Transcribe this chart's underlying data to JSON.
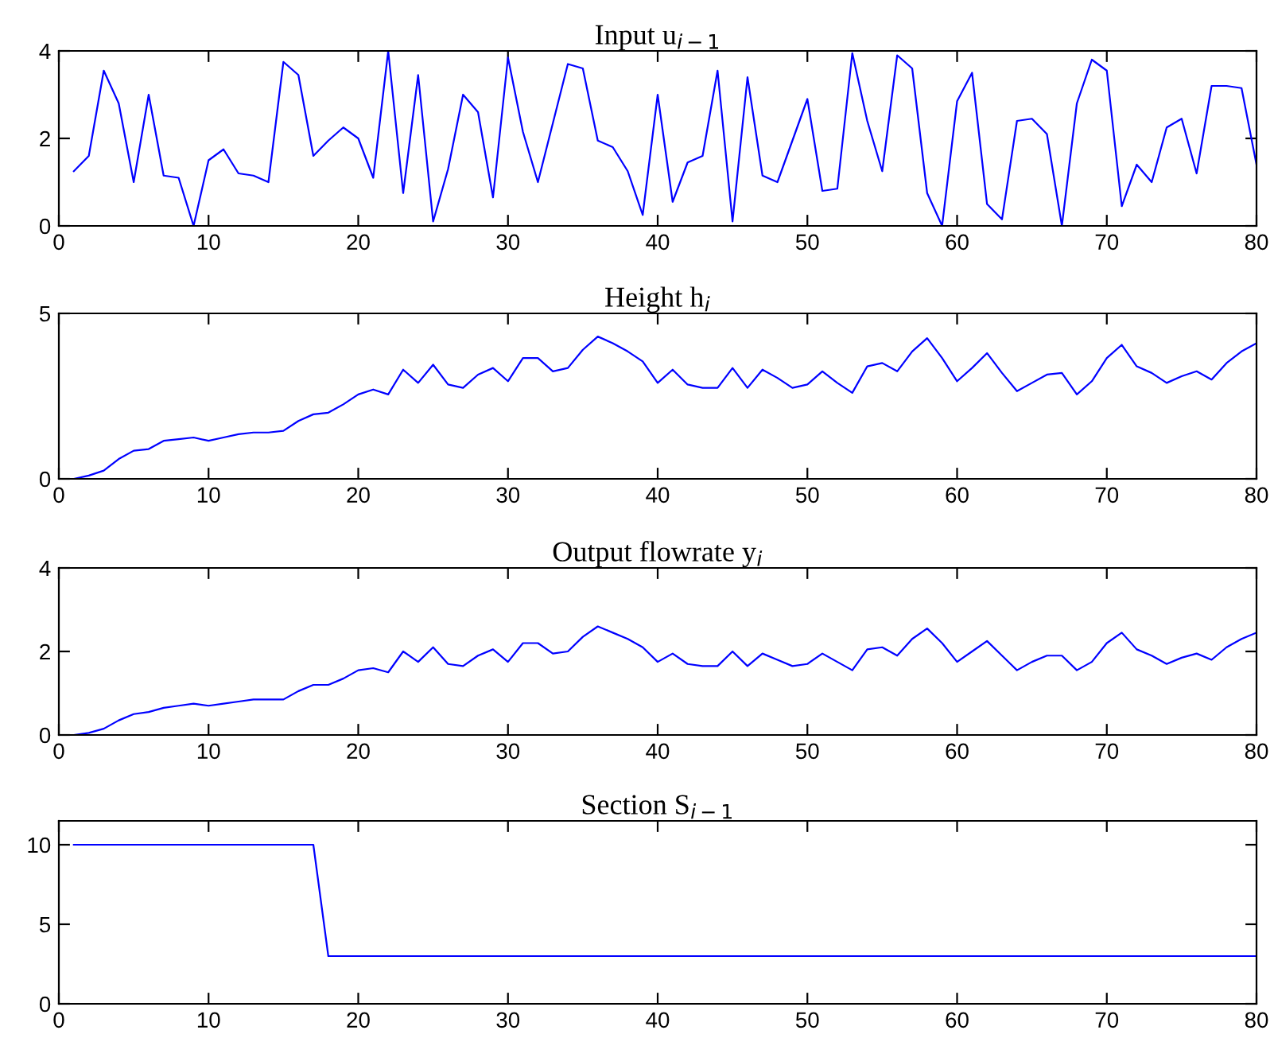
{
  "chart_data": [
    {
      "type": "line",
      "title": "Input u$_{i−1}$",
      "x": [
        1,
        2,
        3,
        4,
        5,
        6,
        7,
        8,
        9,
        10,
        11,
        12,
        13,
        14,
        15,
        16,
        17,
        18,
        19,
        20,
        21,
        22,
        23,
        24,
        25,
        26,
        27,
        28,
        29,
        30,
        31,
        32,
        33,
        34,
        35,
        36,
        37,
        38,
        39,
        40,
        41,
        42,
        43,
        44,
        45,
        46,
        47,
        48,
        49,
        50,
        51,
        52,
        53,
        54,
        55,
        56,
        57,
        58,
        59,
        60,
        61,
        62,
        63,
        64,
        65,
        66,
        67,
        68,
        69,
        70,
        71,
        72,
        73,
        74,
        75,
        76,
        77,
        78,
        79,
        80
      ],
      "xlim": [
        0,
        80
      ],
      "xticks": [
        0,
        10,
        20,
        30,
        40,
        50,
        60,
        70,
        80
      ],
      "ylim": [
        0,
        4
      ],
      "yticks": [
        0,
        2,
        4
      ],
      "grid": false,
      "marker": "none",
      "line_style": "solid",
      "series": [
        {
          "color": "#0000ff",
          "values": [
            1.25,
            1.6,
            3.55,
            2.8,
            1.0,
            3.0,
            1.15,
            1.1,
            0.0,
            1.5,
            1.75,
            1.2,
            1.15,
            1.0,
            3.75,
            3.45,
            1.6,
            1.95,
            2.25,
            2.0,
            1.1,
            4.0,
            0.75,
            3.45,
            0.1,
            1.3,
            3.0,
            2.6,
            0.65,
            3.85,
            2.15,
            1.0,
            2.35,
            3.7,
            3.6,
            1.95,
            1.8,
            1.25,
            0.25,
            3.0,
            0.55,
            1.45,
            1.6,
            3.55,
            0.1,
            3.4,
            1.15,
            1.0,
            1.95,
            2.9,
            0.8,
            0.85,
            3.95,
            2.4,
            1.25,
            3.9,
            3.6,
            0.75,
            0.0,
            2.85,
            3.5,
            0.5,
            0.15,
            2.4,
            2.45,
            2.1,
            0.0,
            2.8,
            3.8,
            3.55,
            0.45,
            1.4,
            1.0,
            2.25,
            2.45,
            1.2,
            3.2,
            3.2,
            3.15,
            1.4
          ]
        }
      ]
    },
    {
      "type": "line",
      "title": "Height h$_{i}$",
      "x": [
        1,
        2,
        3,
        4,
        5,
        6,
        7,
        8,
        9,
        10,
        11,
        12,
        13,
        14,
        15,
        16,
        17,
        18,
        19,
        20,
        21,
        22,
        23,
        24,
        25,
        26,
        27,
        28,
        29,
        30,
        31,
        32,
        33,
        34,
        35,
        36,
        37,
        38,
        39,
        40,
        41,
        42,
        43,
        44,
        45,
        46,
        47,
        48,
        49,
        50,
        51,
        52,
        53,
        54,
        55,
        56,
        57,
        58,
        59,
        60,
        61,
        62,
        63,
        64,
        65,
        66,
        67,
        68,
        69,
        70,
        71,
        72,
        73,
        74,
        75,
        76,
        77,
        78,
        79,
        80
      ],
      "xlim": [
        0,
        80
      ],
      "xticks": [
        0,
        10,
        20,
        30,
        40,
        50,
        60,
        70,
        80
      ],
      "ylim": [
        0,
        5
      ],
      "yticks": [
        0,
        5
      ],
      "grid": false,
      "marker": "none",
      "line_style": "solid",
      "series": [
        {
          "color": "#0000ff",
          "values": [
            0.0,
            0.1,
            0.25,
            0.6,
            0.85,
            0.9,
            1.15,
            1.2,
            1.25,
            1.15,
            1.25,
            1.35,
            1.4,
            1.4,
            1.45,
            1.75,
            1.95,
            2.0,
            2.25,
            2.55,
            2.7,
            2.55,
            3.3,
            2.9,
            3.45,
            2.85,
            2.75,
            3.15,
            3.35,
            2.95,
            3.65,
            3.65,
            3.25,
            3.35,
            3.9,
            4.3,
            4.1,
            3.85,
            3.55,
            2.9,
            3.3,
            2.85,
            2.75,
            2.75,
            3.35,
            2.75,
            3.3,
            3.05,
            2.75,
            2.85,
            3.25,
            2.9,
            2.6,
            3.4,
            3.5,
            3.25,
            3.85,
            4.25,
            3.65,
            2.95,
            3.35,
            3.8,
            3.2,
            2.65,
            2.9,
            3.15,
            3.2,
            2.55,
            2.95,
            3.65,
            4.05,
            3.4,
            3.2,
            2.9,
            3.1,
            3.25,
            3.0,
            3.5,
            3.85,
            4.1
          ]
        }
      ]
    },
    {
      "type": "line",
      "title": "Output flowrate y$_{i}$",
      "x": [
        1,
        2,
        3,
        4,
        5,
        6,
        7,
        8,
        9,
        10,
        11,
        12,
        13,
        14,
        15,
        16,
        17,
        18,
        19,
        20,
        21,
        22,
        23,
        24,
        25,
        26,
        27,
        28,
        29,
        30,
        31,
        32,
        33,
        34,
        35,
        36,
        37,
        38,
        39,
        40,
        41,
        42,
        43,
        44,
        45,
        46,
        47,
        48,
        49,
        50,
        51,
        52,
        53,
        54,
        55,
        56,
        57,
        58,
        59,
        60,
        61,
        62,
        63,
        64,
        65,
        66,
        67,
        68,
        69,
        70,
        71,
        72,
        73,
        74,
        75,
        76,
        77,
        78,
        79,
        80
      ],
      "xlim": [
        0,
        80
      ],
      "xticks": [
        0,
        10,
        20,
        30,
        40,
        50,
        60,
        70,
        80
      ],
      "ylim": [
        0,
        4
      ],
      "yticks": [
        0,
        2,
        4
      ],
      "grid": false,
      "marker": "none",
      "line_style": "solid",
      "series": [
        {
          "color": "#0000ff",
          "values": [
            0.0,
            0.05,
            0.15,
            0.35,
            0.5,
            0.55,
            0.65,
            0.7,
            0.75,
            0.7,
            0.75,
            0.8,
            0.85,
            0.85,
            0.85,
            1.05,
            1.2,
            1.2,
            1.35,
            1.55,
            1.6,
            1.5,
            2.0,
            1.75,
            2.1,
            1.7,
            1.65,
            1.9,
            2.05,
            1.75,
            2.2,
            2.2,
            1.95,
            2.0,
            2.35,
            2.6,
            2.45,
            2.3,
            2.1,
            1.75,
            1.95,
            1.7,
            1.65,
            1.65,
            2.0,
            1.65,
            1.95,
            1.8,
            1.65,
            1.7,
            1.95,
            1.75,
            1.55,
            2.05,
            2.1,
            1.9,
            2.3,
            2.55,
            2.2,
            1.75,
            2.0,
            2.25,
            1.9,
            1.55,
            1.75,
            1.9,
            1.9,
            1.55,
            1.75,
            2.2,
            2.45,
            2.05,
            1.9,
            1.7,
            1.85,
            1.95,
            1.8,
            2.1,
            2.3,
            2.45
          ]
        }
      ]
    },
    {
      "type": "line",
      "title": "Section S$_{i−1}$",
      "x": [
        1,
        2,
        3,
        4,
        5,
        6,
        7,
        8,
        9,
        10,
        11,
        12,
        13,
        14,
        15,
        16,
        17,
        18,
        19,
        20,
        21,
        22,
        23,
        24,
        25,
        26,
        27,
        28,
        29,
        30,
        31,
        32,
        33,
        34,
        35,
        36,
        37,
        38,
        39,
        40,
        41,
        42,
        43,
        44,
        45,
        46,
        47,
        48,
        49,
        50,
        51,
        52,
        53,
        54,
        55,
        56,
        57,
        58,
        59,
        60,
        61,
        62,
        63,
        64,
        65,
        66,
        67,
        68,
        69,
        70,
        71,
        72,
        73,
        74,
        75,
        76,
        77,
        78,
        79,
        80
      ],
      "xlim": [
        0,
        80
      ],
      "xticks": [
        0,
        10,
        20,
        30,
        40,
        50,
        60,
        70,
        80
      ],
      "ylim": [
        0,
        11.5
      ],
      "yticks": [
        0,
        5,
        10
      ],
      "grid": false,
      "marker": "none",
      "line_style": "solid",
      "series": [
        {
          "color": "#0000ff",
          "values": [
            10,
            10,
            10,
            10,
            10,
            10,
            10,
            10,
            10,
            10,
            10,
            10,
            10,
            10,
            10,
            10,
            10,
            3,
            3,
            3,
            3,
            3,
            3,
            3,
            3,
            3,
            3,
            3,
            3,
            3,
            3,
            3,
            3,
            3,
            3,
            3,
            3,
            3,
            3,
            3,
            3,
            3,
            3,
            3,
            3,
            3,
            3,
            3,
            3,
            3,
            3,
            3,
            3,
            3,
            3,
            3,
            3,
            3,
            3,
            3,
            3,
            3,
            3,
            3,
            3,
            3,
            3,
            3,
            3,
            3,
            3,
            3,
            3,
            3,
            3,
            3,
            3,
            3,
            3,
            3
          ]
        }
      ]
    }
  ]
}
